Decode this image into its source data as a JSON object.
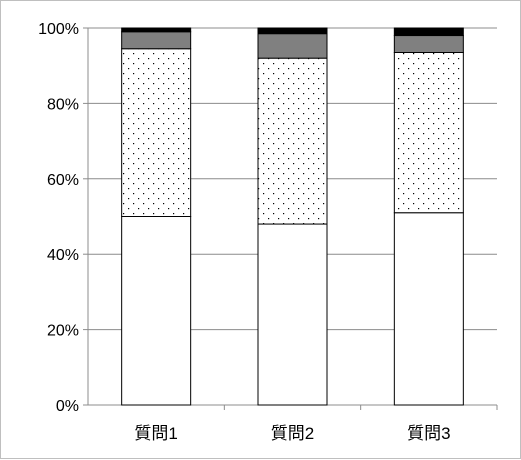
{
  "chart_data": {
    "type": "bar",
    "stacked": true,
    "percent_stacked": true,
    "categories": [
      "質問1",
      "質問2",
      "質問3"
    ],
    "y_ticks": [
      "0%",
      "20%",
      "40%",
      "60%",
      "80%",
      "100%"
    ],
    "ylim": [
      0,
      100
    ],
    "grid": true,
    "legend": "none",
    "series": [
      {
        "fill": "white",
        "color": "#ffffff",
        "values": [
          50,
          48,
          51
        ]
      },
      {
        "fill": "dotted",
        "color": "#ffffff",
        "values": [
          44.5,
          44,
          42.5
        ]
      },
      {
        "fill": "gray",
        "color": "#808080",
        "values": [
          4.5,
          6.5,
          4.5
        ]
      },
      {
        "fill": "black",
        "color": "#000000",
        "values": [
          1,
          1.5,
          2
        ]
      }
    ]
  }
}
